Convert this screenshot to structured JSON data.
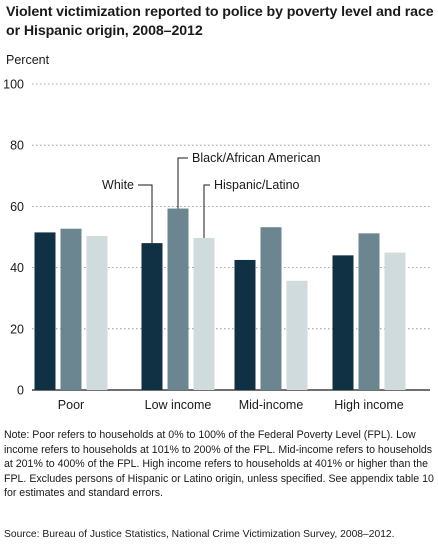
{
  "chart_data": {
    "type": "bar",
    "title": "Violent victimization reported to police by poverty level and race or Hispanic origin, 2008–2012",
    "ylabel": "Percent",
    "xlabel": "",
    "ylim": [
      0,
      100
    ],
    "yticks": [
      0,
      20,
      40,
      60,
      80,
      100
    ],
    "grid": true,
    "categories": [
      "Poor",
      "Low income",
      "Mid-income",
      "High income"
    ],
    "series": [
      {
        "name": "White",
        "color": "#0f3143",
        "values": [
          51.5,
          48,
          42.5,
          44
        ]
      },
      {
        "name": "Black/African American",
        "color": "#6b8591",
        "values": [
          52.7,
          59.3,
          53.2,
          51.2
        ]
      },
      {
        "name": "Hispanic/Latino",
        "color": "#cfdbdc",
        "values": [
          50.3,
          49.7,
          35.7,
          44.9
        ]
      }
    ],
    "legend_placement": "labels with leader lines above low income group"
  },
  "note": "Note: Poor refers to households at 0% to 100% of the Federal Poverty Level (FPL). Low income refers to households at 101% to 200% of the FPL. Mid-income refers to households at 201% to 400% of the FPL. High income refers to households at 401% or higher than the FPL. Excludes persons of Hispanic or Latino origin, unless specified. See appendix table 10 for estimates and standard errors.",
  "source": "Source: Bureau of Justice Statistics, National Crime Victimization Survey, 2008–2012."
}
